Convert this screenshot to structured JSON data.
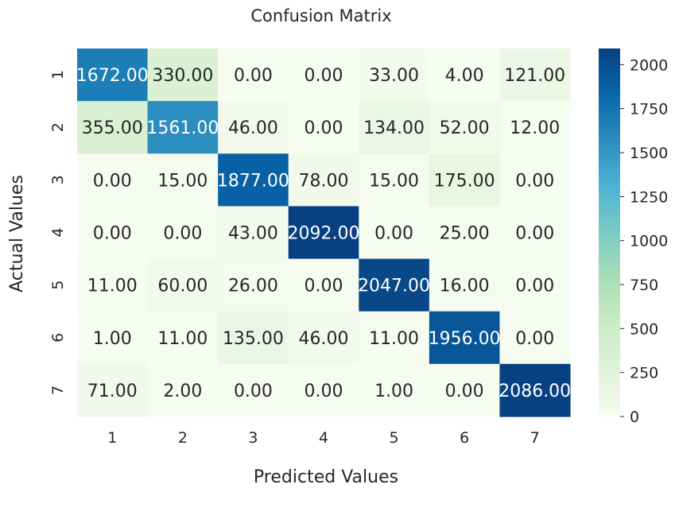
{
  "chart_data": {
    "type": "heatmap",
    "title": "Confusion Matrix",
    "xlabel": "Predicted Values",
    "ylabel": "Actual Values",
    "x_categories": [
      "1",
      "2",
      "3",
      "4",
      "5",
      "6",
      "7"
    ],
    "y_categories": [
      "1",
      "2",
      "3",
      "4",
      "5",
      "6",
      "7"
    ],
    "values": [
      [
        1672,
        330,
        0,
        0,
        33,
        4,
        121
      ],
      [
        355,
        1561,
        46,
        0,
        134,
        52,
        12
      ],
      [
        0,
        15,
        1877,
        78,
        15,
        175,
        0
      ],
      [
        0,
        0,
        43,
        2092,
        0,
        25,
        0
      ],
      [
        11,
        60,
        26,
        0,
        2047,
        16,
        0
      ],
      [
        1,
        11,
        135,
        46,
        11,
        1956,
        0
      ],
      [
        71,
        2,
        0,
        0,
        1,
        0,
        2086
      ]
    ],
    "cell_labels": [
      [
        "1672.00",
        "330.00",
        "0.00",
        "0.00",
        "33.00",
        "4.00",
        "121.00"
      ],
      [
        "355.00",
        "1561.00",
        "46.00",
        "0.00",
        "134.00",
        "52.00",
        "12.00"
      ],
      [
        "0.00",
        "15.00",
        "1877.00",
        "78.00",
        "15.00",
        "175.00",
        "0.00"
      ],
      [
        "0.00",
        "0.00",
        "43.00",
        "2092.00",
        "0.00",
        "25.00",
        "0.00"
      ],
      [
        "11.00",
        "60.00",
        "26.00",
        "0.00",
        "2047.00",
        "16.00",
        "0.00"
      ],
      [
        "1.00",
        "11.00",
        "135.00",
        "46.00",
        "11.00",
        "1956.00",
        "0.00"
      ],
      [
        "71.00",
        "2.00",
        "0.00",
        "0.00",
        "1.00",
        "0.00",
        "2086.00"
      ]
    ],
    "colorbar": {
      "range": [
        0,
        2092
      ],
      "ticks": [
        0,
        250,
        500,
        750,
        1000,
        1250,
        1500,
        1750,
        2000
      ],
      "tick_labels": [
        "0",
        "250",
        "500",
        "750",
        "1000",
        "1250",
        "1500",
        "1750",
        "2000"
      ],
      "colormap": "GnBu",
      "colors": [
        "#f7fcf0",
        "#e0f3db",
        "#ccebc5",
        "#a8ddb5",
        "#7bccc4",
        "#4eb3d3",
        "#2b8cbe",
        "#0868ac",
        "#084081"
      ]
    },
    "legend": "colorbar-right",
    "grid": false
  }
}
